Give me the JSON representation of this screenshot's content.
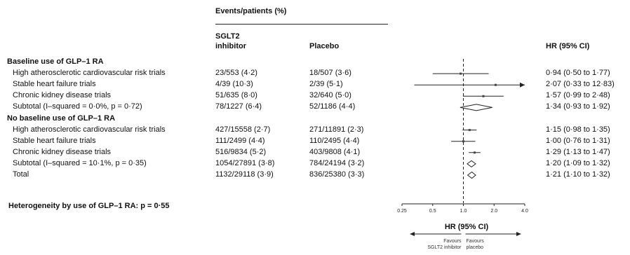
{
  "chart_data": {
    "type": "forest",
    "column_headers": {
      "events_group": "Events/patients (%)",
      "sglt2_line1": "SGLT2",
      "sglt2_line2": "inhibitor",
      "placebo": "Placebo",
      "hr": "HR (95% CI)"
    },
    "groups": [
      {
        "label": "Baseline use of GLP–1 RA",
        "rows": [
          {
            "label": "High atherosclerotic cardiovascular risk trials",
            "sglt2": "23/553 (4·2)",
            "placebo": "18/507 (3·6)",
            "hr_text": "0·94 (0·50 to 1·77)",
            "hr": 0.94,
            "lo": 0.5,
            "hi": 1.77,
            "kind": "study"
          },
          {
            "label": "Stable heart failure trials",
            "sglt2": "4/39 (10·3)",
            "placebo": "2/39 (5·1)",
            "hr_text": "2·07 (0·33 to 12·83)",
            "hr": 2.07,
            "lo": 0.33,
            "hi": 12.83,
            "kind": "study"
          },
          {
            "label": "Chronic kidney disease trials",
            "sglt2": "51/635 (8·0)",
            "placebo": "32/640 (5·0)",
            "hr_text": "1·57 (0·99 to 2·48)",
            "hr": 1.57,
            "lo": 0.99,
            "hi": 2.48,
            "kind": "study"
          },
          {
            "label": "Subtotal (I–squared = 0·0%, p = 0·72)",
            "sglt2": "78/1227 (6·4)",
            "placebo": "52/1186 (4·4)",
            "hr_text": "1·34 (0·93 to 1·92)",
            "hr": 1.34,
            "lo": 0.93,
            "hi": 1.92,
            "kind": "summary"
          }
        ]
      },
      {
        "label": "No baseline use of GLP–1 RA",
        "rows": [
          {
            "label": "High atherosclerotic cardiovascular risk trials",
            "sglt2": "427/15558 (2·7)",
            "placebo": "271/11891 (2·3)",
            "hr_text": "1·15 (0·98 to 1·35)",
            "hr": 1.15,
            "lo": 0.98,
            "hi": 1.35,
            "kind": "study"
          },
          {
            "label": "Stable heart failure trials",
            "sglt2": "111/2499 (4·4)",
            "placebo": "110/2495 (4·4)",
            "hr_text": "1·00 (0·76 to 1·31)",
            "hr": 1.0,
            "lo": 0.76,
            "hi": 1.31,
            "kind": "study"
          },
          {
            "label": "Chronic kidney disease trials",
            "sglt2": "516/9834 (5·2)",
            "placebo": "403/9808 (4·1)",
            "hr_text": "1·29 (1·13 to 1·47)",
            "hr": 1.29,
            "lo": 1.13,
            "hi": 1.47,
            "kind": "study"
          },
          {
            "label": "Subtotal (I–squared = 10·1%, p = 0·35)",
            "sglt2": "1054/27891 (3·8)",
            "placebo": "784/24194 (3·2)",
            "hr_text": "1·20 (1·09 to 1·32)",
            "hr": 1.2,
            "lo": 1.09,
            "hi": 1.32,
            "kind": "summary"
          },
          {
            "label": "Total",
            "sglt2": "1132/29118 (3·9)",
            "placebo": "836/25380 (3·3)",
            "hr_text": "1·21 (1·10 to 1·32)",
            "hr": 1.21,
            "lo": 1.1,
            "hi": 1.32,
            "kind": "summary"
          }
        ]
      }
    ],
    "heterogeneity": "Heterogeneity by use of GLP–1 RA: p = 0·55",
    "x_axis": {
      "scale": "log",
      "range": [
        0.25,
        4.0
      ],
      "ticks": [
        0.25,
        0.5,
        1.0,
        2.0,
        4.0
      ],
      "tick_labels": [
        "0.25",
        "0.5",
        "1.0",
        "2.0",
        "4.0"
      ],
      "label": "HR (95% CI)",
      "null_line": 1.0
    },
    "favours": {
      "left_line1": "Favours",
      "left_line2": "SGLT2 inhibitor",
      "right_line1": "Favours",
      "right_line2": "placebo"
    }
  }
}
